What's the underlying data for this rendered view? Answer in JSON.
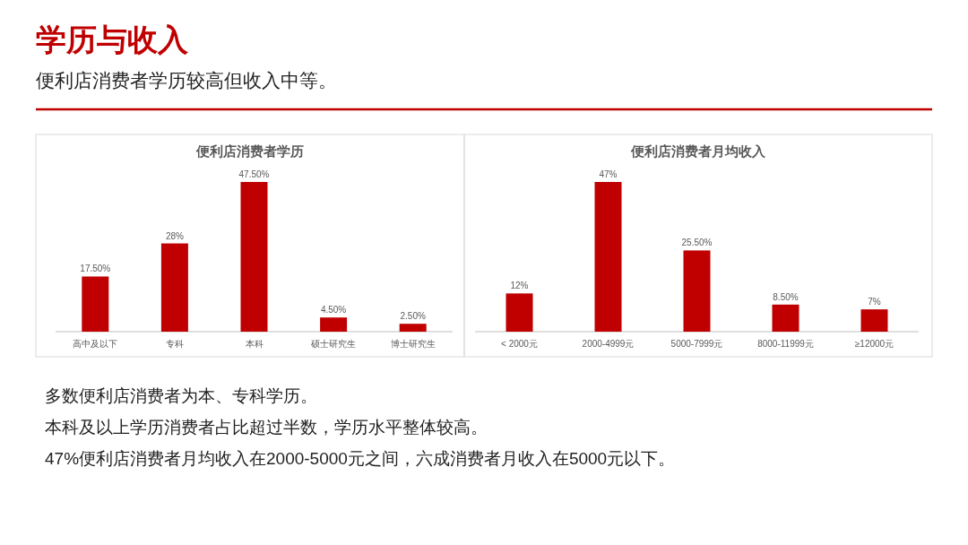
{
  "chart_data": [
    {
      "type": "other",
      "title": "学历与收入",
      "subtitle": "便利店消费者学历较高但收入中等。",
      "annotations": [
        "多数便利店消费者为本、专科学历。",
        "本科及以上学历消费者占比超过半数，学历水平整体较高。",
        "47%便利店消费者月均收入在2000-5000元之间，六成消费者月收入在5000元以下。"
      ]
    },
    {
      "type": "bar",
      "title": "便利店消费者学历",
      "categories": [
        "高中及以下",
        "专科",
        "本科",
        "硕士研究生",
        "博士研究生"
      ],
      "values": [
        17.5,
        28,
        47.5,
        4.5,
        2.5
      ],
      "value_labels": [
        "17.50%",
        "28%",
        "47.50%",
        "4.50%",
        "2.50%"
      ],
      "color": "#c00000"
    },
    {
      "type": "bar",
      "title": "便利店消费者月均收入",
      "categories": [
        "< 2000元",
        "2000-4999元",
        "5000-7999元",
        "8000-11999元",
        "≥12000元"
      ],
      "values": [
        12,
        47,
        25.5,
        8.5,
        7
      ],
      "value_labels": [
        "12%",
        "47%",
        "25.50%",
        "8.50%",
        "7%"
      ],
      "color": "#c00000"
    }
  ]
}
